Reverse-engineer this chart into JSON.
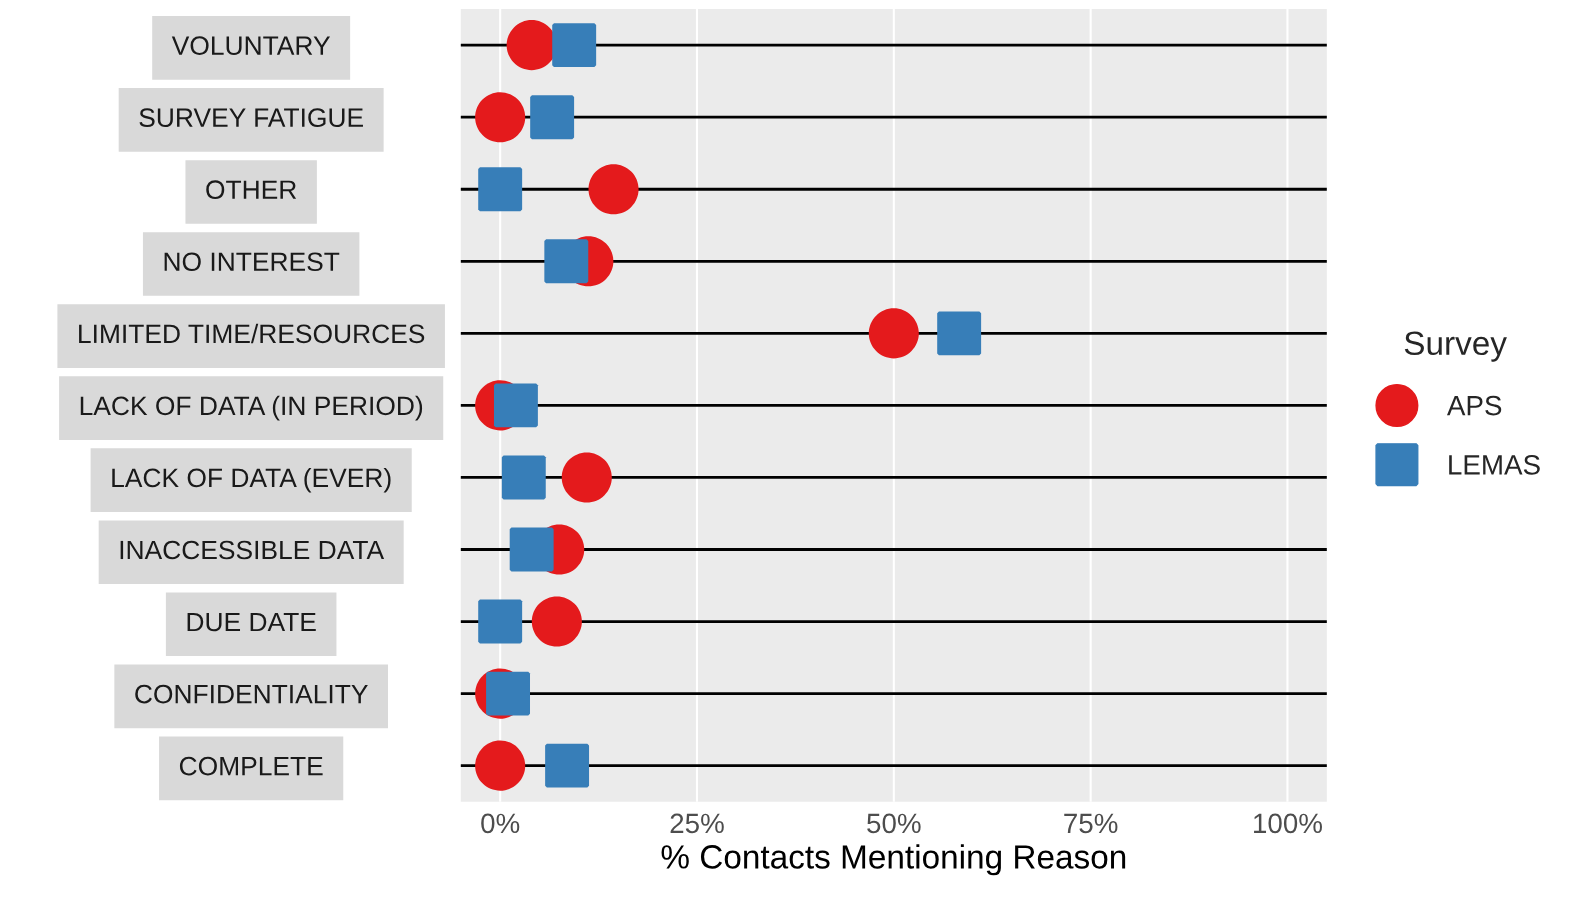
{
  "chart_data": {
    "type": "scatter",
    "orientation": "horizontal",
    "categories": [
      "VOLUNTARY",
      "SURVEY FATIGUE",
      "OTHER",
      "NO INTEREST",
      "LIMITED TIME/RESOURCES",
      "LACK OF DATA (IN PERIOD)",
      "LACK OF DATA (EVER)",
      "INACCESSIBLE DATA",
      "DUE DATE",
      "CONFIDENTIALITY",
      "COMPLETE"
    ],
    "series": [
      {
        "name": "APS",
        "color": "#e41a1c",
        "marker": "circle",
        "values": [
          4,
          0,
          14.4,
          11.2,
          50,
          0,
          11,
          7.5,
          7.2,
          0,
          0
        ]
      },
      {
        "name": "LEMAS",
        "color": "#377eb8",
        "marker": "square",
        "values": [
          9.4,
          6.6,
          0,
          8.4,
          58.3,
          2,
          3,
          4,
          0,
          1,
          8.5
        ]
      }
    ],
    "xlabel": "% Contacts Mentioning Reason",
    "legend_title": "Survey",
    "legend": "right",
    "xlim": [
      -5,
      105
    ],
    "xticks": [
      {
        "value": 0,
        "label": "0%"
      },
      {
        "value": 25,
        "label": "25%"
      },
      {
        "value": 50,
        "label": "50%"
      },
      {
        "value": 75,
        "label": "75%"
      },
      {
        "value": 100,
        "label": "100%"
      }
    ],
    "grid": true
  }
}
